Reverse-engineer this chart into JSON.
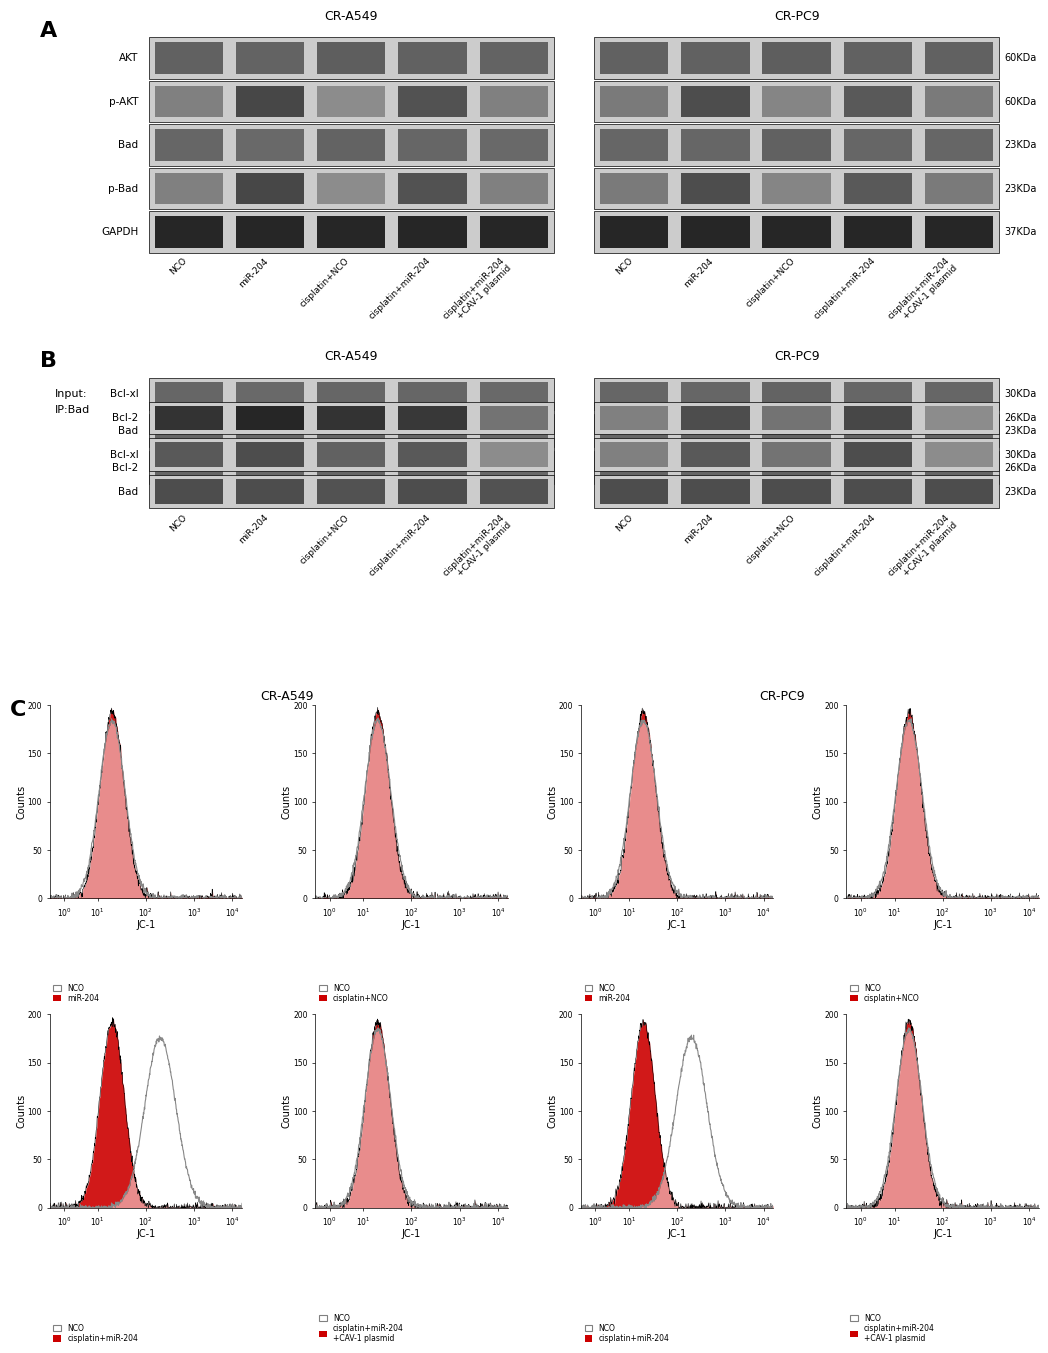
{
  "panel_A": {
    "label": "A",
    "cell_lines": [
      "CR-A549",
      "CR-PC9"
    ],
    "row_labels": [
      "AKT",
      "p-AKT",
      "Bad",
      "p-Bad",
      "GAPDH"
    ],
    "kda_labels": [
      "60KDa",
      "60KDa",
      "23KDa",
      "23KDa",
      "37KDa"
    ],
    "x_labels": [
      "NCO",
      "miR-204",
      "cisplatin+NCO",
      "cisplatin+miR-204",
      "cisplatin+miR-204\n+CAV-1 plasmid"
    ]
  },
  "panel_B": {
    "label": "B",
    "cell_lines": [
      "CR-A549",
      "CR-PC9"
    ],
    "input_labels": [
      "Bcl-xl",
      "Bad",
      "Bcl-2"
    ],
    "input_kda": [
      "30KDa",
      "23KDa",
      "26KDa"
    ],
    "ip_labels": [
      "Bcl-2",
      "Bcl-xl",
      "Bad"
    ],
    "ip_kda": [
      "26KDa",
      "30KDa",
      "23KDa"
    ],
    "x_labels": [
      "NCO",
      "miR-204",
      "cisplatin+NCO",
      "cisplatin+miR-204",
      "cisplatin+miR-204\n+CAV-1 plasmid"
    ],
    "section_label_input": "Input:",
    "section_label_ip": "IP:Bad"
  },
  "panel_C": {
    "label": "C",
    "cell_lines_top": [
      "CR-A549",
      "CR-PC9"
    ],
    "top_row_legends": [
      [
        "NCO",
        "miR-204"
      ],
      [
        "NCO",
        "cisplatin+NCO"
      ],
      [
        "NCO",
        "miR-204"
      ],
      [
        "NCO",
        "cisplatin+NCO"
      ]
    ],
    "bottom_row_legends": [
      [
        "NCO",
        "cisplatin+miR-204"
      ],
      [
        "NCO",
        "cisplatin+miR-204\n+CAV-1 plasmid"
      ],
      [
        "NCO",
        "cisplatin+miR-204"
      ],
      [
        "NCO",
        "cisplatin+miR-204\n+CAV-1 plasmid"
      ]
    ],
    "xlabel": "JC-1",
    "ylabel": "Counts",
    "ymax": 200,
    "yticks": [
      0,
      50,
      100,
      150,
      200
    ],
    "red_color": "#CC0000",
    "gray_color": "#888888"
  },
  "figure_bg": "#ffffff"
}
